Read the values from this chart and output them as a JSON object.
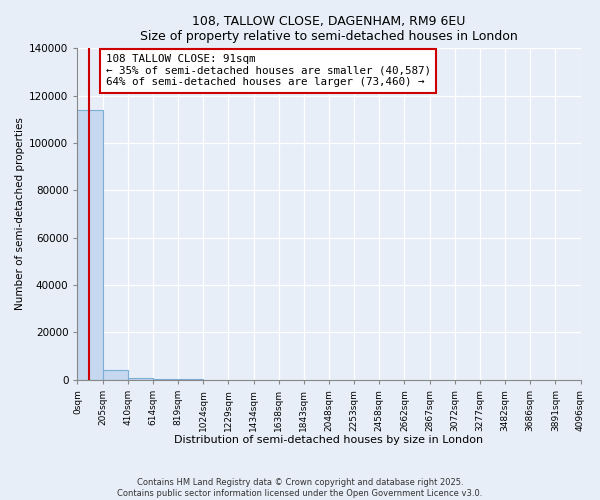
{
  "title": "108, TALLOW CLOSE, DAGENHAM, RM9 6EU",
  "subtitle": "Size of property relative to semi-detached houses in London",
  "xlabel": "Distribution of semi-detached houses by size in London",
  "ylabel": "Number of semi-detached properties",
  "bin_edges": [
    0,
    205,
    410,
    614,
    819,
    1024,
    1229,
    1434,
    1638,
    1843,
    2048,
    2253,
    2458,
    2662,
    2867,
    3072,
    3277,
    3482,
    3686,
    3891,
    4096
  ],
  "bar_heights": [
    114047,
    4200,
    500,
    150,
    80,
    50,
    30,
    20,
    15,
    12,
    10,
    8,
    6,
    5,
    4,
    3,
    3,
    2,
    2,
    1
  ],
  "bar_color": "#c5d8f0",
  "bar_edge_color": "#7aaed4",
  "property_size": 91,
  "property_label": "108 TALLOW CLOSE: 91sqm",
  "pct_smaller": 35,
  "count_smaller": 40587,
  "pct_larger": 64,
  "count_larger": 73460,
  "red_line_color": "#cc0000",
  "annotation_box_color": "#cc0000",
  "ylim": [
    0,
    140000
  ],
  "yticks": [
    0,
    20000,
    40000,
    60000,
    80000,
    100000,
    120000,
    140000
  ],
  "footer": "Contains HM Land Registry data © Crown copyright and database right 2025.\nContains public sector information licensed under the Open Government Licence v3.0.",
  "bg_color": "#e8eef8",
  "plot_bg_color": "#e8eef8"
}
